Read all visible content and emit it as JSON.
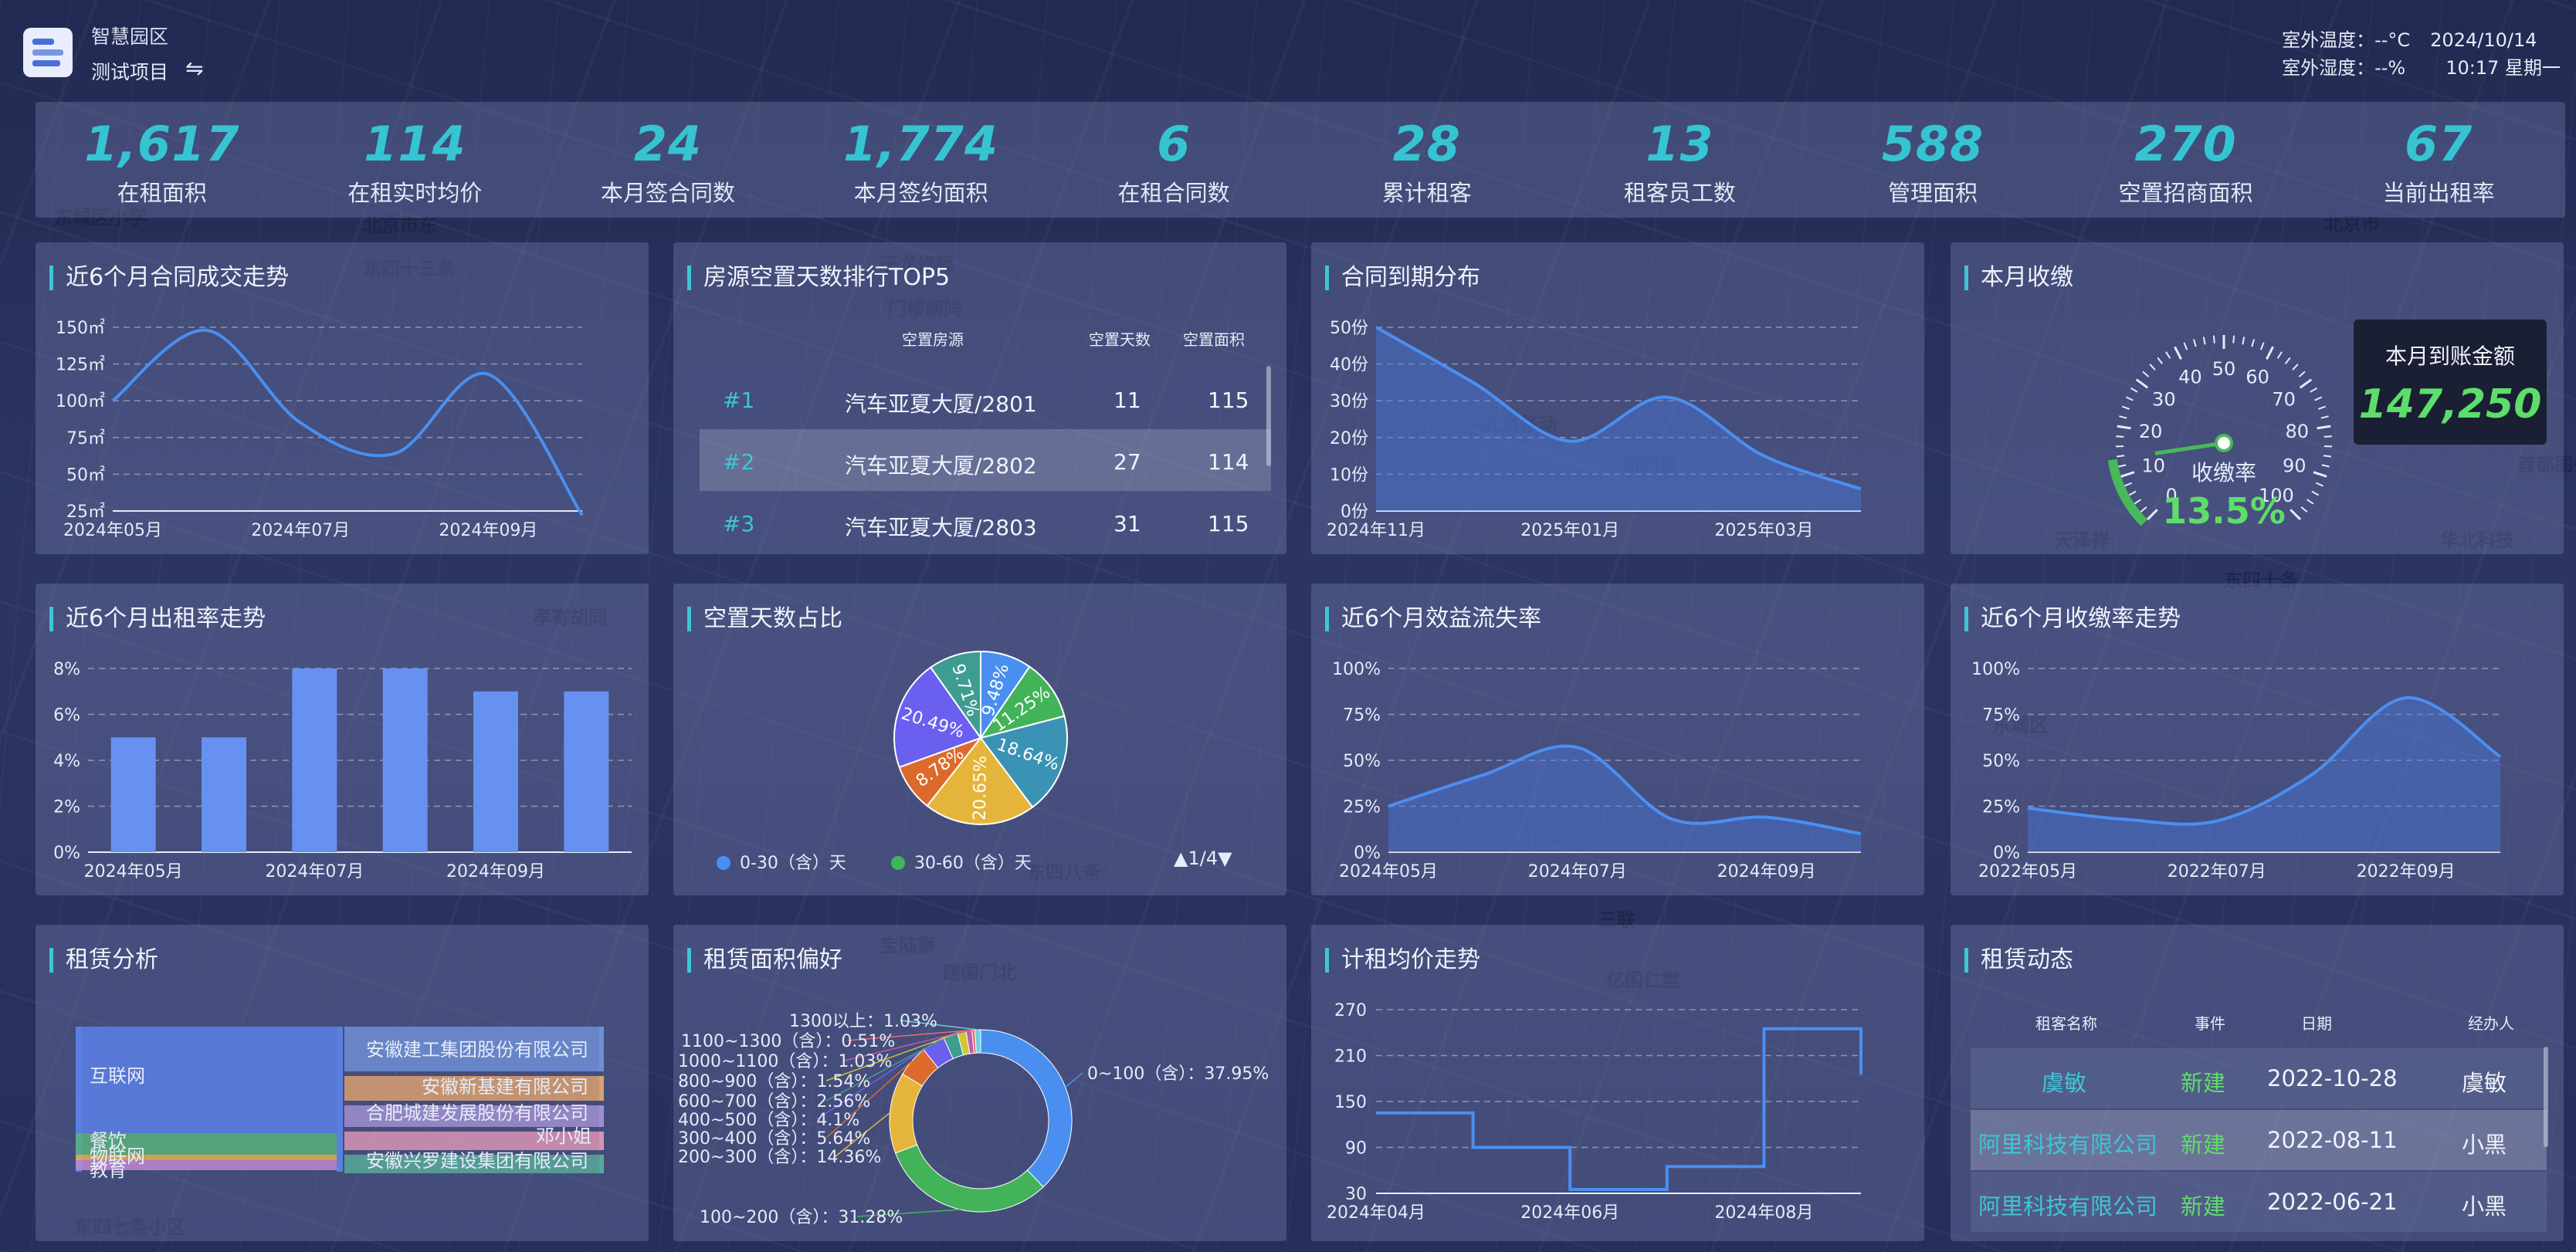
{
  "header": {
    "app_title": "智慧园区",
    "project": "测试项目",
    "swap_icon": "⇋",
    "temp_label": "室外温度：--°C",
    "date": "2024/10/14",
    "humid_label": "室外湿度：--%",
    "time": "10:17 星期一"
  },
  "kpis": [
    {
      "value": "1,617",
      "label": "在租面积"
    },
    {
      "value": "114",
      "label": "在租实时均价"
    },
    {
      "value": "24",
      "label": "本月签合同数"
    },
    {
      "value": "1,774",
      "label": "本月签约面积"
    },
    {
      "value": "6",
      "label": "在租合同数"
    },
    {
      "value": "28",
      "label": "累计租客"
    },
    {
      "value": "13",
      "label": "租客员工数"
    },
    {
      "value": "588",
      "label": "管理面积"
    },
    {
      "value": "270",
      "label": "空置招商面积"
    },
    {
      "value": "67",
      "label": "当前出租率"
    }
  ],
  "map_labels": [
    "东城区小学",
    "北京市东",
    "子龙修睦",
    "北京市",
    "东四十三条",
    "门楼胡同",
    "北京移动",
    "胡同里",
    "东四十条",
    "孝寄胡同",
    "东城区",
    "亿国仁堂",
    "建国门北",
    "天泽祥",
    "华北科技",
    "首都图书馆",
    "东四八条",
    "东四七条小区",
    "宝陆寮",
    "三联"
  ],
  "panels": {
    "p1": {
      "title": "近6个月合同成交走势"
    },
    "p2": {
      "title": "房源空置天数排行TOP5",
      "col1": "空置房源",
      "col2": "空置天数",
      "col3": "空置面积",
      "rows": [
        {
          "rank": "#1",
          "name": "汽车亚夏大厦/2801",
          "days": "11",
          "area": "115"
        },
        {
          "rank": "#2",
          "name": "汽车亚夏大厦/2802",
          "days": "27",
          "area": "114"
        },
        {
          "rank": "#3",
          "name": "汽车亚夏大厦/2803",
          "days": "31",
          "area": "115"
        }
      ]
    },
    "p3": {
      "title": "合同到期分布"
    },
    "p4": {
      "title": "本月收缴",
      "gauge_label": "收缴率",
      "gauge_value": "13.5%",
      "box_title": "本月到账金额",
      "box_value": "147,250"
    },
    "p5": {
      "title": "近6个月出租率走势"
    },
    "p6": {
      "title": "空置天数占比",
      "legend1": "0-30（含）天",
      "legend2": "30-60（含）天",
      "pager": "▲1/4▼"
    },
    "p7": {
      "title": "近6个月效益流失率"
    },
    "p8": {
      "title": "近6个月收缴率走势"
    },
    "p9": {
      "title": "租赁分析"
    },
    "p10": {
      "title": "租赁面积偏好"
    },
    "p11": {
      "title": "计租均价走势"
    },
    "p12": {
      "title": "租赁动态",
      "col1": "租客名称",
      "col2": "事件",
      "col3": "日期",
      "col4": "经办人",
      "rows": [
        {
          "name": "虞敏",
          "event": "新建",
          "date": "2022-10-28",
          "agent": "虞敏"
        },
        {
          "name": "阿里科技有限公司",
          "event": "新建",
          "date": "2022-08-11",
          "agent": "小黑"
        },
        {
          "name": "阿里科技有限公司",
          "event": "新建",
          "date": "2022-06-21",
          "agent": "小黑"
        }
      ]
    }
  },
  "chart_data": [
    {
      "id": "contract-trend",
      "type": "area",
      "y_unit": "㎡",
      "x_labels": [
        "2024年05月",
        "2024年07月",
        "2024年09月"
      ],
      "y_ticks": [
        25,
        50,
        75,
        100,
        125,
        150
      ],
      "ylim": [
        25,
        150
      ],
      "x": [
        0,
        1,
        2,
        3,
        4,
        5
      ],
      "values": [
        100,
        148,
        85,
        64,
        118,
        22
      ]
    },
    {
      "id": "expiry-distribution",
      "type": "area",
      "y_unit": "份",
      "x_labels": [
        "2024年11月",
        "2025年01月",
        "2025年03月"
      ],
      "y_ticks": [
        0,
        10,
        20,
        30,
        40,
        50
      ],
      "ylim": [
        0,
        50
      ],
      "x": [
        0,
        1,
        2,
        3,
        4,
        5
      ],
      "values": [
        50,
        35,
        19,
        31,
        15,
        6
      ]
    },
    {
      "id": "occupancy-trend",
      "type": "bar",
      "x_labels": [
        "2024年05月",
        "2024年07月",
        "2024年09月"
      ],
      "y_ticks": [
        "0%",
        "2%",
        "4%",
        "6%",
        "8%"
      ],
      "ylim": [
        0,
        8
      ],
      "values": [
        5,
        5,
        8,
        8,
        7,
        7
      ]
    },
    {
      "id": "vacancy-share",
      "type": "pie",
      "slices": [
        {
          "label": "9.48%",
          "value": 9.48,
          "color": "#4a8ff0"
        },
        {
          "label": "11.25%",
          "value": 11.25,
          "color": "#43b35a"
        },
        {
          "label": "18.64%",
          "value": 18.64,
          "color": "#3a93b4"
        },
        {
          "label": "20.65%",
          "value": 20.65,
          "color": "#e5b53b"
        },
        {
          "label": "8.78%",
          "value": 8.78,
          "color": "#dc6a2a"
        },
        {
          "label": "20.49%",
          "value": 20.49,
          "color": "#6b5ff0"
        },
        {
          "label": "9.71%",
          "value": 9.71,
          "color": "#3e9c90"
        }
      ]
    },
    {
      "id": "revenue-loss",
      "type": "area",
      "x_labels": [
        "2024年05月",
        "2024年07月",
        "2024年09月"
      ],
      "y_ticks": [
        "0%",
        "25%",
        "50%",
        "75%",
        "100%"
      ],
      "ylim": [
        0,
        100
      ],
      "values": [
        25,
        42,
        57,
        18,
        19,
        10
      ]
    },
    {
      "id": "collection-trend",
      "type": "area",
      "x_labels": [
        "2022年05月",
        "2022年07月",
        "2022年09月"
      ],
      "y_ticks": [
        "0%",
        "25%",
        "50%",
        "75%",
        "100%"
      ],
      "ylim": [
        0,
        100
      ],
      "values": [
        24,
        18,
        17,
        42,
        84,
        52
      ]
    },
    {
      "id": "rental-analysis",
      "type": "sankey",
      "left": [
        "互联网",
        "餐饮",
        "物联网",
        "教育"
      ],
      "right": [
        "安徽建工集团股份有限公司",
        "安徽新基建有限公司",
        "合肥城建发展股份有限公司",
        "邓小姐",
        "安徽兴罗建设集团有限公司"
      ],
      "right_colors": [
        "#6f8fd6",
        "#d9a070",
        "#a08fd0",
        "#d994b5",
        "#58a99a"
      ]
    },
    {
      "id": "area-preference",
      "type": "donut",
      "slices": [
        {
          "label": "0~100（含）：37.95%",
          "value": 37.95,
          "color": "#4a8ff0"
        },
        {
          "label": "100~200（含）：31.28%",
          "value": 31.28,
          "color": "#43b35a"
        },
        {
          "label": "200~300（含）：14.36%",
          "value": 14.36,
          "color": "#e5b53b"
        },
        {
          "label": "300~400（含）：5.64%",
          "value": 5.64,
          "color": "#dc6a2a"
        },
        {
          "label": "400~500（含）：4.1%",
          "value": 4.1,
          "color": "#6b5ff0"
        },
        {
          "label": "600~700（含）：2.56%",
          "value": 2.56,
          "color": "#3e9c90"
        },
        {
          "label": "800~900（含）：1.54%",
          "value": 1.54,
          "color": "#d0c63a"
        },
        {
          "label": "1000~1100（含）：1.03%",
          "value": 1.03,
          "color": "#c05ab0"
        },
        {
          "label": "1100~1300（含）：0.51%",
          "value": 0.51,
          "color": "#e07070"
        },
        {
          "label": "1300以上：1.03%",
          "value": 1.03,
          "color": "#6fd0e0"
        }
      ]
    },
    {
      "id": "rent-price-trend",
      "type": "step",
      "x_labels": [
        "2024年04月",
        "2024年06月",
        "2024年08月"
      ],
      "y_ticks": [
        30,
        90,
        150,
        210,
        270
      ],
      "ylim": [
        30,
        270
      ],
      "values": [
        135,
        135,
        90,
        90,
        35,
        35,
        65,
        65,
        245,
        245,
        185
      ]
    }
  ]
}
